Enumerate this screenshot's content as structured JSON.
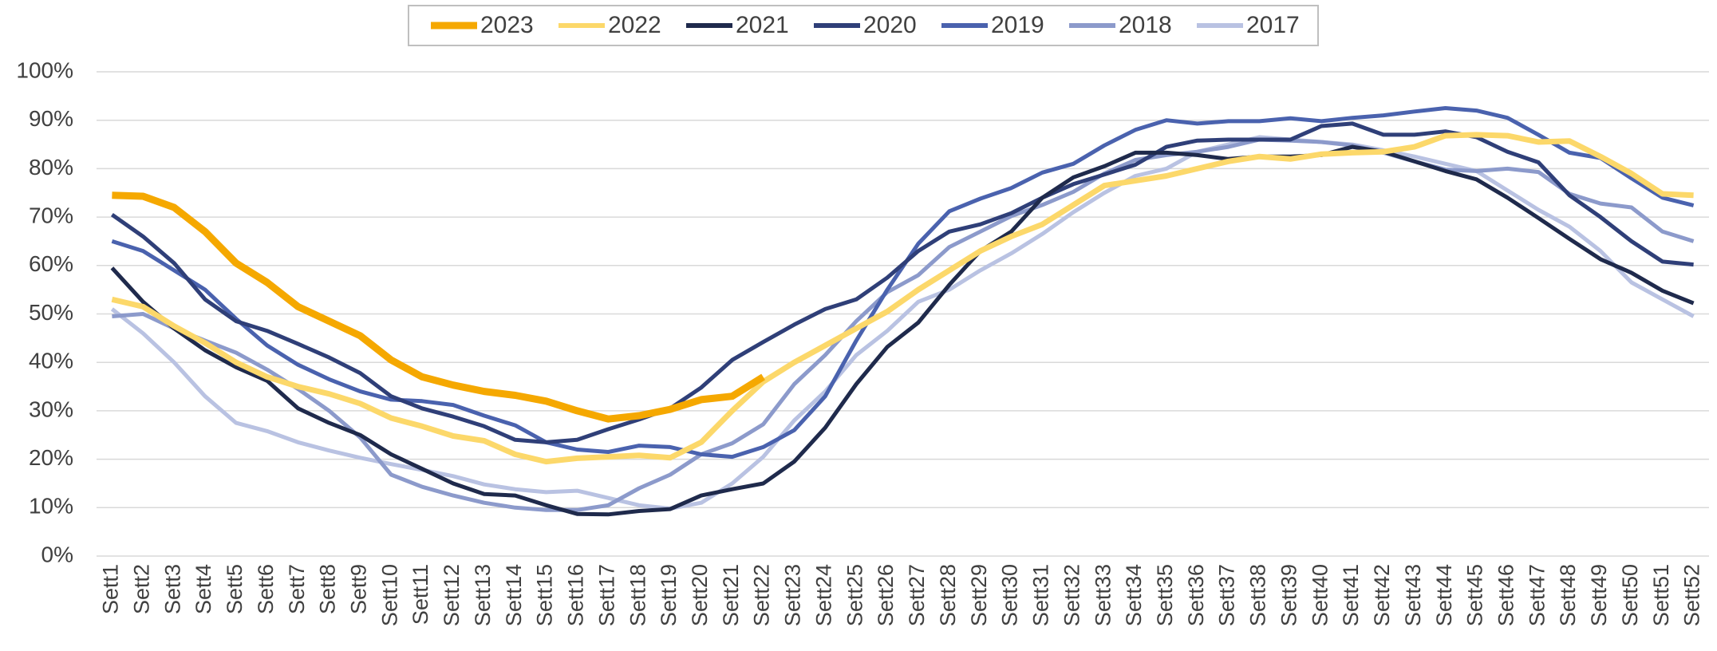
{
  "chart_data": {
    "type": "line",
    "categories": [
      "Sett1",
      "Sett2",
      "Sett3",
      "Sett4",
      "Sett5",
      "Sett6",
      "Sett7",
      "Sett8",
      "Sett9",
      "Sett10",
      "Sett11",
      "Sett12",
      "Sett13",
      "Sett14",
      "Sett15",
      "Sett16",
      "Sett17",
      "Sett18",
      "Sett19",
      "Sett20",
      "Sett21",
      "Sett22",
      "Sett23",
      "Sett24",
      "Sett25",
      "Sett26",
      "Sett27",
      "Sett28",
      "Sett29",
      "Sett30",
      "Sett31",
      "Sett32",
      "Sett33",
      "Sett34",
      "Sett35",
      "Sett36",
      "Sett37",
      "Sett38",
      "Sett39",
      "Sett40",
      "Sett41",
      "Sett42",
      "Sett43",
      "Sett44",
      "Sett45",
      "Sett46",
      "Sett47",
      "Sett48",
      "Sett49",
      "Sett50",
      "Sett51",
      "Sett52"
    ],
    "series": [
      {
        "name": "2023",
        "color": "#f5a800",
        "values": [
          74.5,
          74.3,
          72,
          67,
          60.5,
          56.5,
          51.5,
          48.5,
          45.5,
          40.5,
          37,
          35.3,
          34,
          33.2,
          32,
          30,
          28.3,
          29,
          30.3,
          32.3,
          33,
          37,
          null,
          null,
          null,
          null,
          null,
          null,
          null,
          null,
          null,
          null,
          null,
          null,
          null,
          null,
          null,
          null,
          null,
          null,
          null,
          null,
          null,
          null,
          null,
          null,
          null,
          null,
          null,
          null,
          null,
          null
        ]
      },
      {
        "name": "2022",
        "color": "#fcd86a",
        "values": [
          53,
          51.5,
          47.5,
          44,
          40,
          37,
          35,
          33.5,
          31.5,
          28.5,
          26.8,
          24.8,
          23.8,
          21,
          19.5,
          20.2,
          20.5,
          20.8,
          20.3,
          23.5,
          30,
          36,
          40,
          43.5,
          47,
          50.5,
          55,
          59,
          63,
          66,
          68.5,
          72.5,
          76.5,
          77.5,
          78.5,
          80,
          81.5,
          82.5,
          82,
          83,
          83.3,
          83.5,
          84.5,
          86.8,
          87,
          86.8,
          85.5,
          85.7,
          82.5,
          79,
          74.8,
          74.5
        ]
      },
      {
        "name": "2021",
        "color": "#1f2a4c",
        "values": [
          59.5,
          52.5,
          47,
          42.5,
          39,
          36.2,
          30.5,
          27.5,
          25,
          21,
          18,
          15,
          12.8,
          12.5,
          10.5,
          8.7,
          8.6,
          9.3,
          9.7,
          12.5,
          13.8,
          15,
          19.5,
          26.5,
          35.5,
          43.2,
          48.2,
          56,
          63,
          67,
          74,
          78.2,
          80.5,
          83.3,
          83.3,
          82.8,
          82,
          82.5,
          82.5,
          82.8,
          84.5,
          83.5,
          81.5,
          79.5,
          77.8,
          74,
          69.8,
          65.5,
          61.3,
          58.5,
          54.8,
          52.2
        ]
      },
      {
        "name": "2020",
        "color": "#2f3f78",
        "values": [
          70.5,
          66,
          60.5,
          53,
          48.5,
          46.5,
          43.8,
          41,
          37.8,
          33,
          30.5,
          28.8,
          26.8,
          24,
          23.5,
          24,
          26.2,
          28.2,
          30.5,
          34.8,
          40.5,
          44.2,
          47.8,
          51,
          53,
          57.5,
          63,
          67,
          68.5,
          70.8,
          74,
          76.8,
          78.8,
          80.8,
          84.5,
          85.8,
          86,
          86,
          86,
          88.8,
          89.3,
          87,
          87,
          87.7,
          86.5,
          83.5,
          81.3,
          74.5,
          70,
          65,
          60.8,
          60.2
        ]
      },
      {
        "name": "2019",
        "color": "#4a62ae",
        "values": [
          65,
          63,
          59,
          55,
          49,
          43.5,
          39.5,
          36.5,
          34,
          32.3,
          32,
          31.2,
          29,
          27,
          23.5,
          22,
          21.5,
          22.8,
          22.5,
          21,
          20.5,
          22.5,
          26,
          33,
          44.5,
          55,
          64.5,
          71.2,
          73.8,
          76,
          79.2,
          81,
          84.8,
          88,
          90,
          89.3,
          89.8,
          89.8,
          90.4,
          89.8,
          90.5,
          91,
          91.8,
          92.5,
          92,
          90.5,
          87,
          83.3,
          82.2,
          78,
          74,
          72.4
        ]
      },
      {
        "name": "2018",
        "color": "#8c9acb",
        "values": [
          49.5,
          50,
          47,
          44.5,
          42,
          38.5,
          34.5,
          30,
          24.5,
          16.8,
          14.3,
          12.5,
          11,
          10,
          9.5,
          9.5,
          10.5,
          14,
          16.8,
          21,
          23.3,
          27.2,
          35.5,
          41.5,
          48.5,
          54.5,
          58,
          63.8,
          67,
          70.2,
          72.5,
          75.2,
          79,
          81.8,
          82.8,
          83.5,
          84.5,
          86,
          85.8,
          85.5,
          84.8,
          83.3,
          81.5,
          79.8,
          79.5,
          80,
          79.3,
          74.8,
          72.8,
          72,
          67,
          65
        ]
      },
      {
        "name": "2017",
        "color": "#b9c2e2",
        "values": [
          51,
          46,
          40,
          33,
          27.5,
          25.8,
          23.5,
          21.8,
          20.3,
          19,
          17.8,
          16.5,
          14.8,
          13.8,
          13.2,
          13.5,
          12,
          10.5,
          9.8,
          11,
          15,
          20.5,
          28,
          34,
          41.5,
          46.5,
          52.5,
          55,
          59,
          62.5,
          66.5,
          71,
          75,
          78.5,
          80,
          83.5,
          85,
          86.5,
          86,
          85.5,
          85,
          83.8,
          82.5,
          81,
          79.5,
          75.5,
          71.5,
          68,
          63,
          56.5,
          53,
          49.5
        ]
      }
    ],
    "ylim": [
      0,
      100
    ],
    "yticks": [
      {
        "value": 0,
        "label": "0%"
      },
      {
        "value": 10,
        "label": "10%"
      },
      {
        "value": 20,
        "label": "20%"
      },
      {
        "value": 30,
        "label": "30%"
      },
      {
        "value": 40,
        "label": "40%"
      },
      {
        "value": 50,
        "label": "50%"
      },
      {
        "value": 60,
        "label": "60%"
      },
      {
        "value": 70,
        "label": "70%"
      },
      {
        "value": 80,
        "label": "80%"
      },
      {
        "value": 90,
        "label": "90%"
      },
      {
        "value": 100,
        "label": "100%"
      }
    ],
    "grid": true,
    "legend": "top"
  }
}
